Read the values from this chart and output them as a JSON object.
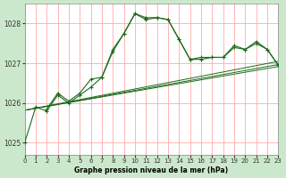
{
  "title": "Graphe pression niveau de la mer (hPa)",
  "fig_bg_color": "#cce8cc",
  "plot_bg_color": "#ffffff",
  "grid_color": "#ffaaaa",
  "line_color": "#1a6b1a",
  "xlim": [
    0,
    23
  ],
  "ylim": [
    1024.7,
    1028.5
  ],
  "yticks": [
    1025,
    1026,
    1027,
    1028
  ],
  "xticks": [
    0,
    1,
    2,
    3,
    4,
    5,
    6,
    7,
    8,
    9,
    10,
    11,
    12,
    13,
    14,
    15,
    16,
    17,
    18,
    19,
    20,
    21,
    22,
    23
  ],
  "series_main": {
    "x": [
      0,
      1,
      2,
      3,
      4,
      5,
      6,
      7,
      8,
      9,
      10,
      11,
      12,
      13,
      14,
      15,
      16,
      17,
      18,
      19,
      20,
      21,
      22,
      23
    ],
    "y": [
      1025.0,
      1025.9,
      1025.8,
      1026.2,
      1026.0,
      1026.2,
      1026.4,
      1026.65,
      1027.3,
      1027.75,
      1028.25,
      1028.1,
      1028.15,
      1028.1,
      1027.6,
      1027.1,
      1027.1,
      1027.15,
      1027.15,
      1027.4,
      1027.35,
      1027.5,
      1027.35,
      1026.95
    ]
  },
  "series_secondary": {
    "x": [
      2,
      3,
      4,
      5,
      6,
      7,
      8,
      9,
      10,
      11,
      12,
      13,
      14,
      15,
      16,
      17,
      18,
      19,
      20,
      21,
      22,
      23
    ],
    "y": [
      1025.85,
      1026.25,
      1026.05,
      1026.25,
      1026.6,
      1026.65,
      1027.35,
      1027.75,
      1028.25,
      1028.15,
      1028.15,
      1028.1,
      1027.6,
      1027.1,
      1027.15,
      1027.15,
      1027.15,
      1027.45,
      1027.35,
      1027.55,
      1027.35,
      1026.95
    ]
  },
  "trend_lines": [
    {
      "x": [
        0,
        23
      ],
      "y": [
        1025.82,
        1026.97
      ]
    },
    {
      "x": [
        0,
        23
      ],
      "y": [
        1025.82,
        1027.05
      ]
    },
    {
      "x": [
        0,
        23
      ],
      "y": [
        1025.82,
        1026.92
      ]
    }
  ]
}
